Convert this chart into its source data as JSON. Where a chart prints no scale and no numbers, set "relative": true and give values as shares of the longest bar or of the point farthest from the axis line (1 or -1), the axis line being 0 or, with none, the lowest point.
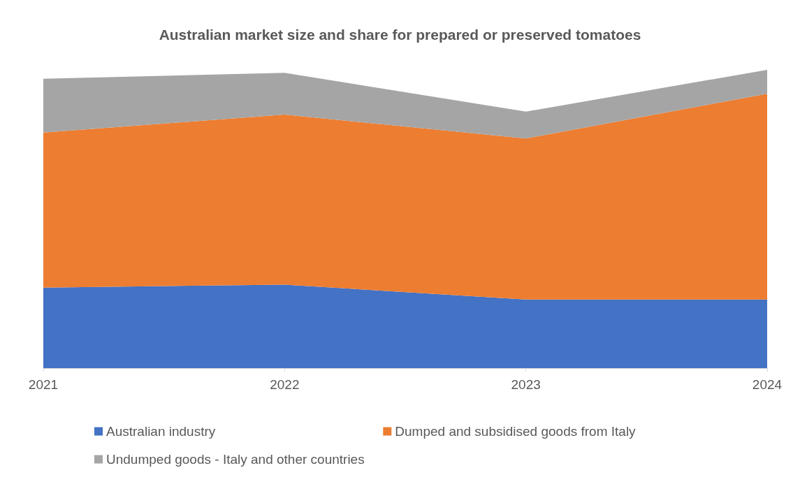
{
  "chart_data": {
    "type": "area",
    "title": "Australian market size and share for prepared or preserved tomatoes",
    "categories": [
      "2021",
      "2022",
      "2023",
      "2024"
    ],
    "relative": true,
    "stacked": true,
    "grid": false,
    "legend": "bottom",
    "series": [
      {
        "name": "Australian industry",
        "color": "#4472c4",
        "values": [
          0.27,
          0.28,
          0.23,
          0.23
        ]
      },
      {
        "name": "Dumped and subsidised goods from Italy",
        "color": "#ed7d31",
        "values": [
          0.52,
          0.57,
          0.54,
          0.69
        ]
      },
      {
        "name": "Undumped goods - Italy and other countries",
        "color": "#a5a5a5",
        "values": [
          0.18,
          0.14,
          0.09,
          0.08
        ]
      }
    ]
  }
}
